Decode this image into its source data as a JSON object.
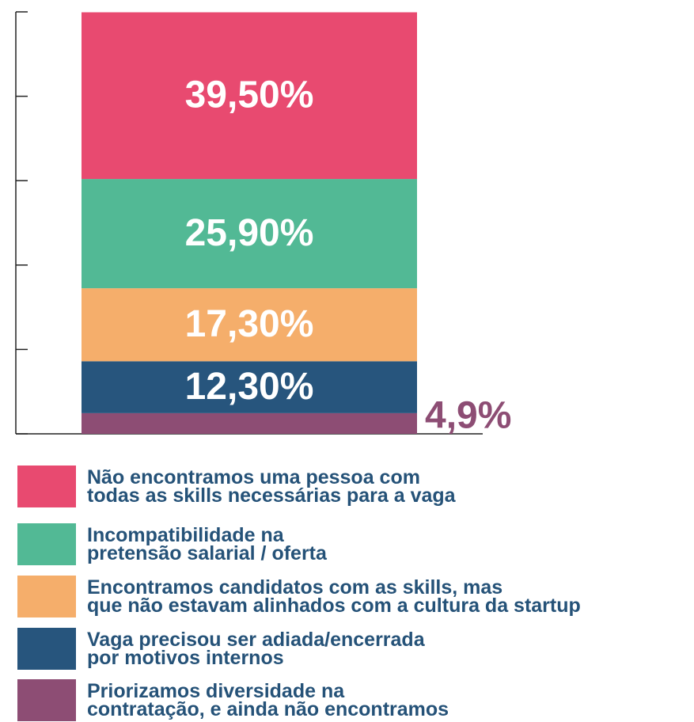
{
  "chart_data": {
    "type": "stacked_bar",
    "ylim": [
      0,
      100
    ],
    "yticks": [
      0,
      20,
      40,
      60,
      80,
      100
    ],
    "series": [
      {
        "name": "Priorizamos diversidade na\ncontratação, e ainda não encontramos",
        "color": "#8d4d74",
        "values": [
          4.9
        ],
        "value_labels": [
          "4,9%"
        ]
      },
      {
        "name": "Vaga precisou ser adiada/encerrada\npor motivos internos",
        "color": "#27557d",
        "values": [
          12.3
        ],
        "value_labels": [
          "12,30%"
        ]
      },
      {
        "name": "Encontramos candidatos com as skills, mas\nque não estavam alinhados com a cultura da startup",
        "color": "#f5ae6b",
        "values": [
          17.3
        ],
        "value_labels": [
          "17,30%"
        ]
      },
      {
        "name": "Incompatibilidade na\npretensão salarial / oferta",
        "color": "#52b995",
        "values": [
          25.9
        ],
        "value_labels": [
          "25,90%"
        ]
      },
      {
        "name": "Não encontramos uma pessoa com\ntodas as skills necessárias para a vaga",
        "color": "#e84a70",
        "values": [
          39.5
        ],
        "value_labels": [
          "39,50%"
        ]
      }
    ]
  }
}
